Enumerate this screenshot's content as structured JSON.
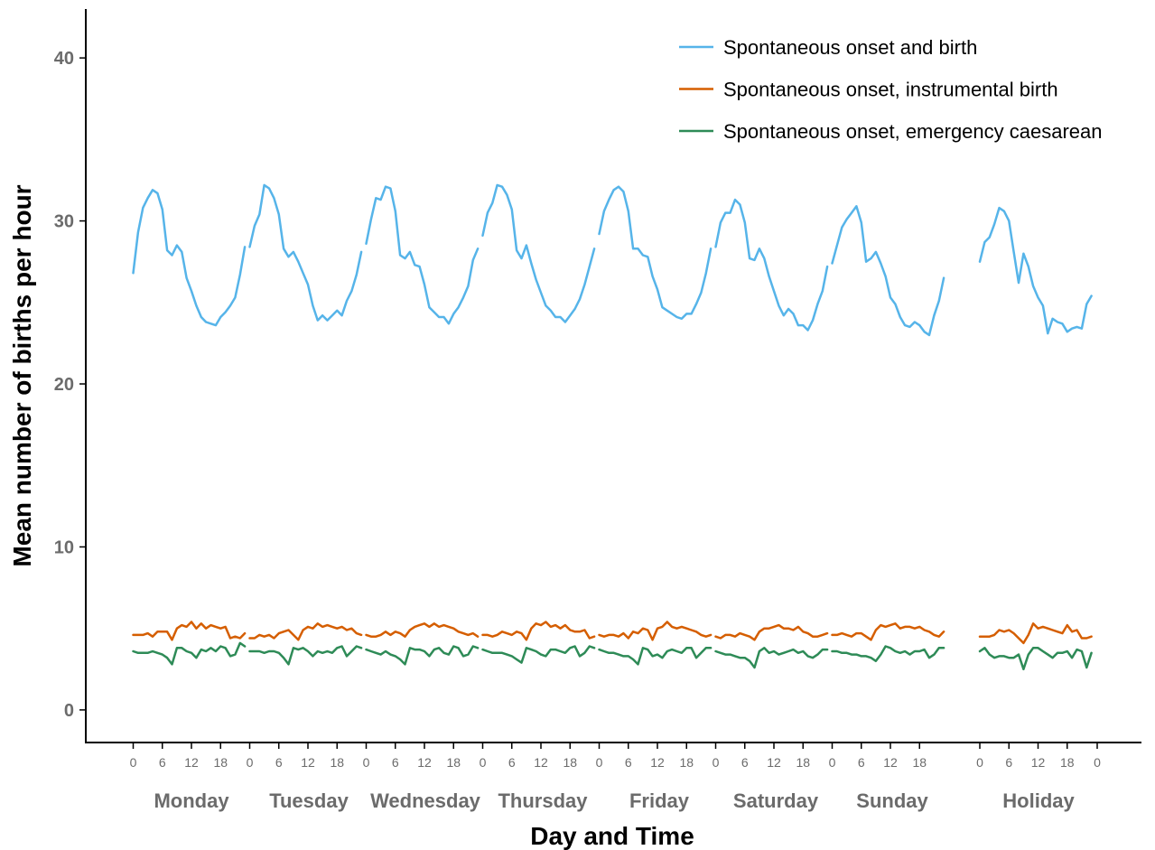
{
  "chart_data": {
    "type": "line",
    "title": "",
    "xlabel": "Day and Time",
    "ylabel": "Mean number of births per hour",
    "ylim": [
      -2,
      43
    ],
    "yticks": [
      0,
      10,
      20,
      30,
      40
    ],
    "grid": false,
    "legend_position": "top-right",
    "hour_ticks": [
      "0",
      "6",
      "12",
      "18"
    ],
    "holiday_end_tick": "0",
    "days": [
      "Monday",
      "Tuesday",
      "Wednesday",
      "Thursday",
      "Friday",
      "Saturday",
      "Sunday",
      "Holiday"
    ],
    "series": [
      {
        "name": "Spontaneous onset and birth",
        "color": "#56B4E9",
        "segments": [
          {
            "day": "Monday",
            "values": [
              26.8,
              29.3,
              30.8,
              31.4,
              31.9,
              31.7,
              30.7,
              28.2,
              27.9,
              28.5,
              28.1,
              26.5,
              25.7,
              24.8,
              24.1,
              23.8,
              23.7,
              23.6,
              24.1,
              24.4,
              24.8,
              25.3,
              26.7,
              28.4
            ]
          },
          {
            "day": "Tuesday",
            "values": [
              28.4,
              29.7,
              30.4,
              32.2,
              32.0,
              31.4,
              30.4,
              28.3,
              27.8,
              28.1,
              27.5,
              26.8,
              26.1,
              24.8,
              23.9,
              24.2,
              23.9,
              24.2,
              24.5,
              24.2,
              25.1,
              25.7,
              26.7,
              28.1
            ]
          },
          {
            "day": "Wednesday",
            "values": [
              28.6,
              30.1,
              31.4,
              31.3,
              32.1,
              32.0,
              30.6,
              27.9,
              27.7,
              28.1,
              27.3,
              27.2,
              26.1,
              24.7,
              24.4,
              24.1,
              24.1,
              23.7,
              24.3,
              24.7,
              25.3,
              26.0,
              27.6,
              28.3
            ]
          },
          {
            "day": "Thursday",
            "values": [
              29.1,
              30.5,
              31.1,
              32.2,
              32.1,
              31.6,
              30.7,
              28.2,
              27.7,
              28.5,
              27.4,
              26.4,
              25.6,
              24.8,
              24.5,
              24.1,
              24.1,
              23.8,
              24.2,
              24.6,
              25.2,
              26.1,
              27.2,
              28.3
            ]
          },
          {
            "day": "Friday",
            "values": [
              29.2,
              30.6,
              31.3,
              31.9,
              32.1,
              31.8,
              30.6,
              28.3,
              28.3,
              27.9,
              27.8,
              26.6,
              25.8,
              24.7,
              24.5,
              24.3,
              24.1,
              24.0,
              24.3,
              24.3,
              24.9,
              25.6,
              26.8,
              28.3
            ]
          },
          {
            "day": "Saturday",
            "values": [
              28.4,
              29.9,
              30.5,
              30.5,
              31.3,
              31.0,
              29.9,
              27.7,
              27.6,
              28.3,
              27.7,
              26.6,
              25.7,
              24.8,
              24.2,
              24.6,
              24.3,
              23.6,
              23.6,
              23.3,
              23.9,
              24.9,
              25.7,
              27.2
            ]
          },
          {
            "day": "Sunday",
            "values": [
              27.4,
              28.5,
              29.6,
              30.1,
              30.5,
              30.9,
              29.9,
              27.5,
              27.7,
              28.1,
              27.4,
              26.6,
              25.3,
              24.9,
              24.1,
              23.6,
              23.5,
              23.8,
              23.6,
              23.2,
              23.0,
              24.2,
              25.1,
              26.5
            ]
          },
          {
            "day": "Holiday",
            "values": [
              27.5,
              28.7,
              29.0,
              29.8,
              30.8,
              30.6,
              30.0,
              28.1,
              26.2,
              28.0,
              27.2,
              26.0,
              25.3,
              24.8,
              23.1,
              24.0,
              23.8,
              23.7,
              23.2,
              23.4,
              23.5,
              23.4,
              24.9,
              25.4
            ]
          }
        ]
      },
      {
        "name": "Spontaneous onset, instrumental birth",
        "color": "#D55E00",
        "segments": [
          {
            "day": "Monday",
            "values": [
              4.6,
              4.6,
              4.6,
              4.7,
              4.5,
              4.8,
              4.8,
              4.8,
              4.3,
              5.0,
              5.2,
              5.1,
              5.4,
              5.0,
              5.3,
              5.0,
              5.2,
              5.1,
              5.0,
              5.1,
              4.4,
              4.5,
              4.4,
              4.7
            ]
          },
          {
            "day": "Tuesday",
            "values": [
              4.4,
              4.4,
              4.6,
              4.5,
              4.6,
              4.4,
              4.7,
              4.8,
              4.9,
              4.6,
              4.3,
              4.9,
              5.1,
              5.0,
              5.3,
              5.1,
              5.2,
              5.1,
              5.0,
              5.1,
              4.9,
              5.0,
              4.7,
              4.6
            ]
          },
          {
            "day": "Wednesday",
            "values": [
              4.6,
              4.5,
              4.5,
              4.6,
              4.8,
              4.6,
              4.8,
              4.7,
              4.5,
              4.9,
              5.1,
              5.2,
              5.3,
              5.1,
              5.3,
              5.1,
              5.2,
              5.1,
              5.0,
              4.8,
              4.7,
              4.6,
              4.7,
              4.5
            ]
          },
          {
            "day": "Thursday",
            "values": [
              4.6,
              4.6,
              4.5,
              4.6,
              4.8,
              4.7,
              4.6,
              4.8,
              4.7,
              4.3,
              5.0,
              5.3,
              5.2,
              5.4,
              5.1,
              5.2,
              5.0,
              5.2,
              4.9,
              4.8,
              4.8,
              4.9,
              4.4,
              4.5
            ]
          },
          {
            "day": "Friday",
            "values": [
              4.6,
              4.5,
              4.6,
              4.6,
              4.5,
              4.7,
              4.4,
              4.8,
              4.7,
              5.0,
              4.9,
              4.3,
              5.0,
              5.1,
              5.4,
              5.1,
              5.0,
              5.1,
              5.0,
              4.9,
              4.8,
              4.6,
              4.5,
              4.6
            ]
          },
          {
            "day": "Saturday",
            "values": [
              4.5,
              4.4,
              4.6,
              4.6,
              4.5,
              4.7,
              4.6,
              4.5,
              4.3,
              4.8,
              5.0,
              5.0,
              5.1,
              5.2,
              5.0,
              5.0,
              4.9,
              5.1,
              4.8,
              4.7,
              4.5,
              4.5,
              4.6,
              4.7
            ]
          },
          {
            "day": "Sunday",
            "values": [
              4.6,
              4.6,
              4.7,
              4.6,
              4.5,
              4.7,
              4.7,
              4.5,
              4.3,
              4.9,
              5.2,
              5.1,
              5.2,
              5.3,
              5.0,
              5.1,
              5.1,
              5.0,
              5.1,
              4.9,
              4.8,
              4.6,
              4.5,
              4.8
            ]
          },
          {
            "day": "Holiday",
            "values": [
              4.5,
              4.5,
              4.5,
              4.6,
              4.9,
              4.8,
              4.9,
              4.7,
              4.4,
              4.1,
              4.6,
              5.3,
              5.0,
              5.1,
              5.0,
              4.9,
              4.8,
              4.7,
              5.2,
              4.8,
              4.9,
              4.4,
              4.4,
              4.5
            ]
          }
        ]
      },
      {
        "name": "Spontaneous onset, emergency caesarean",
        "color": "#2E8B57",
        "segments": [
          {
            "day": "Monday",
            "values": [
              3.6,
              3.5,
              3.5,
              3.5,
              3.6,
              3.5,
              3.4,
              3.2,
              2.8,
              3.8,
              3.8,
              3.6,
              3.5,
              3.2,
              3.7,
              3.6,
              3.8,
              3.6,
              3.9,
              3.8,
              3.3,
              3.4,
              4.1,
              3.9
            ]
          },
          {
            "day": "Tuesday",
            "values": [
              3.6,
              3.6,
              3.6,
              3.5,
              3.6,
              3.6,
              3.5,
              3.2,
              2.8,
              3.8,
              3.7,
              3.8,
              3.6,
              3.3,
              3.6,
              3.5,
              3.6,
              3.5,
              3.8,
              3.9,
              3.3,
              3.6,
              3.9,
              3.8
            ]
          },
          {
            "day": "Wednesday",
            "values": [
              3.7,
              3.6,
              3.5,
              3.4,
              3.6,
              3.4,
              3.3,
              3.1,
              2.8,
              3.8,
              3.7,
              3.7,
              3.6,
              3.3,
              3.7,
              3.8,
              3.5,
              3.4,
              3.9,
              3.8,
              3.3,
              3.4,
              3.9,
              3.8
            ]
          },
          {
            "day": "Thursday",
            "values": [
              3.7,
              3.6,
              3.5,
              3.5,
              3.5,
              3.4,
              3.3,
              3.1,
              2.9,
              3.8,
              3.7,
              3.6,
              3.4,
              3.3,
              3.7,
              3.7,
              3.6,
              3.5,
              3.8,
              3.9,
              3.3,
              3.5,
              3.9,
              3.8
            ]
          },
          {
            "day": "Friday",
            "values": [
              3.7,
              3.6,
              3.5,
              3.5,
              3.4,
              3.3,
              3.3,
              3.1,
              2.8,
              3.8,
              3.7,
              3.3,
              3.4,
              3.2,
              3.6,
              3.7,
              3.6,
              3.5,
              3.8,
              3.8,
              3.2,
              3.5,
              3.8,
              3.8
            ]
          },
          {
            "day": "Saturday",
            "values": [
              3.6,
              3.5,
              3.4,
              3.4,
              3.3,
              3.2,
              3.2,
              3.0,
              2.6,
              3.6,
              3.8,
              3.5,
              3.6,
              3.4,
              3.5,
              3.6,
              3.7,
              3.5,
              3.6,
              3.3,
              3.2,
              3.4,
              3.7,
              3.7
            ]
          },
          {
            "day": "Sunday",
            "values": [
              3.6,
              3.6,
              3.5,
              3.5,
              3.4,
              3.4,
              3.3,
              3.3,
              3.2,
              3.0,
              3.4,
              3.9,
              3.8,
              3.6,
              3.5,
              3.6,
              3.4,
              3.6,
              3.6,
              3.7,
              3.2,
              3.4,
              3.8,
              3.8
            ]
          },
          {
            "day": "Holiday",
            "values": [
              3.6,
              3.8,
              3.4,
              3.2,
              3.3,
              3.3,
              3.2,
              3.2,
              3.4,
              2.5,
              3.4,
              3.8,
              3.8,
              3.6,
              3.4,
              3.2,
              3.5,
              3.5,
              3.6,
              3.2,
              3.7,
              3.6,
              2.6,
              3.5
            ]
          }
        ]
      }
    ]
  }
}
